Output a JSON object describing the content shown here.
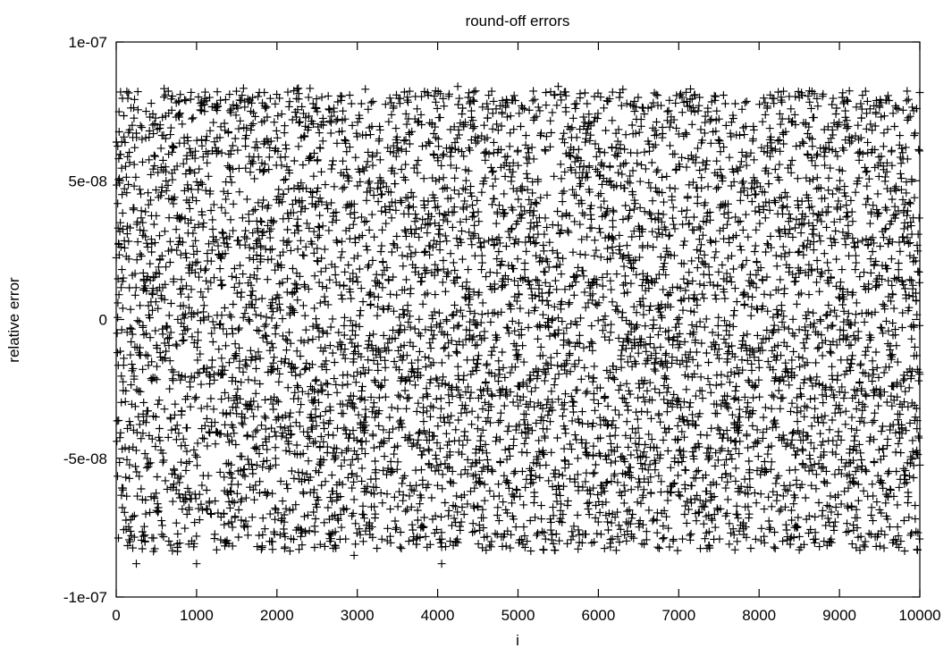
{
  "chart_data": {
    "type": "scatter",
    "title": "round-off errors",
    "xlabel": "i",
    "ylabel": "relative error",
    "xlim": [
      0,
      10000
    ],
    "ylim": [
      -1e-07,
      1e-07
    ],
    "x_ticks": [
      0,
      1000,
      2000,
      3000,
      4000,
      5000,
      6000,
      7000,
      8000,
      9000,
      10000
    ],
    "x_tick_labels": [
      "0",
      "1000",
      "2000",
      "3000",
      "4000",
      "5000",
      "6000",
      "7000",
      "8000",
      "9000",
      "10000"
    ],
    "y_ticks": [
      -1e-07,
      -5e-08,
      0,
      5e-08,
      1e-07
    ],
    "y_tick_labels": [
      "-1e-07",
      "-5e-08",
      "0",
      "5e-08",
      "1e-07"
    ],
    "grid": false,
    "legend": "none",
    "marker": "+",
    "marker_color": "#000000",
    "series": [
      {
        "x_start": 0,
        "x_end": 10000,
        "x_step": 1,
        "count": 10001,
        "points": [
          [
            55,
            8.2e-08
          ],
          [
            250,
            -8.8e-08
          ],
          [
            1000,
            -8.8e-08
          ],
          [
            2960,
            -8.5e-08
          ],
          [
            4050,
            -8.8e-08
          ],
          [
            4050,
            -8.2e-08
          ],
          [
            4250,
            8.4e-08
          ],
          [
            5500,
            8.4e-08
          ],
          [
            7200,
            8.1e-08
          ],
          [
            3100,
            8.3e-08
          ],
          [
            4450,
            8.2e-08
          ],
          [
            8500,
            -8.3e-08
          ],
          [
            8500,
            8e-08
          ],
          [
            1250,
            -8.3e-08
          ],
          [
            7700,
            -8.3e-08
          ],
          [
            9960,
            7.6e-08
          ],
          [
            2100,
            -8.2e-08
          ],
          [
            6150,
            -8.2e-08
          ]
        ]
      }
    ]
  }
}
